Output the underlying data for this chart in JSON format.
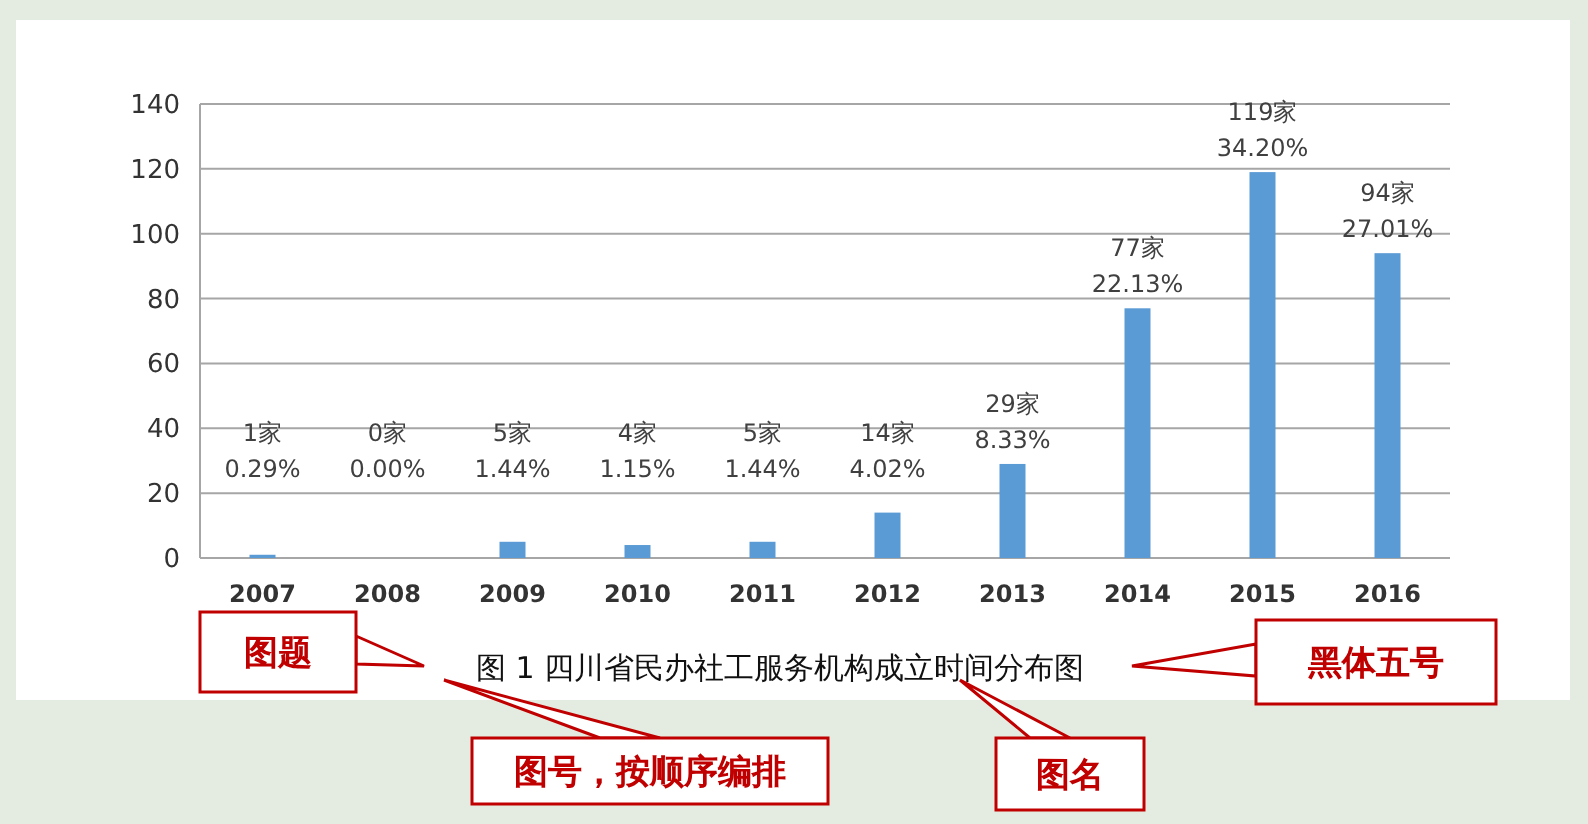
{
  "chart_data": {
    "type": "bar",
    "title": "图 1 四川省民办社工服务机构成立时间分布图",
    "categories": [
      "2007",
      "2008",
      "2009",
      "2010",
      "2011",
      "2012",
      "2013",
      "2014",
      "2015",
      "2016"
    ],
    "series": [
      {
        "color": "#5b9bd5",
        "values": [
          1,
          0,
          5,
          4,
          5,
          14,
          29,
          77,
          119,
          94
        ],
        "value_labels": [
          "1家\n0.29%",
          "0家\n0.00%",
          "5家\n1.44%",
          "4家\n1.15%",
          "5家\n1.44%",
          "14家\n4.02%",
          "29家\n8.33%",
          "77家\n22.13%",
          "119家\n34.20%",
          "94家\n27.01%"
        ]
      }
    ],
    "ylim": [
      0,
      140
    ],
    "yticks": [
      0,
      20,
      40,
      60,
      80,
      100,
      120,
      140
    ],
    "grid": "y",
    "annotations": [
      "图题",
      "黑体五号",
      "图号，按顺序编排",
      "图名"
    ]
  }
}
